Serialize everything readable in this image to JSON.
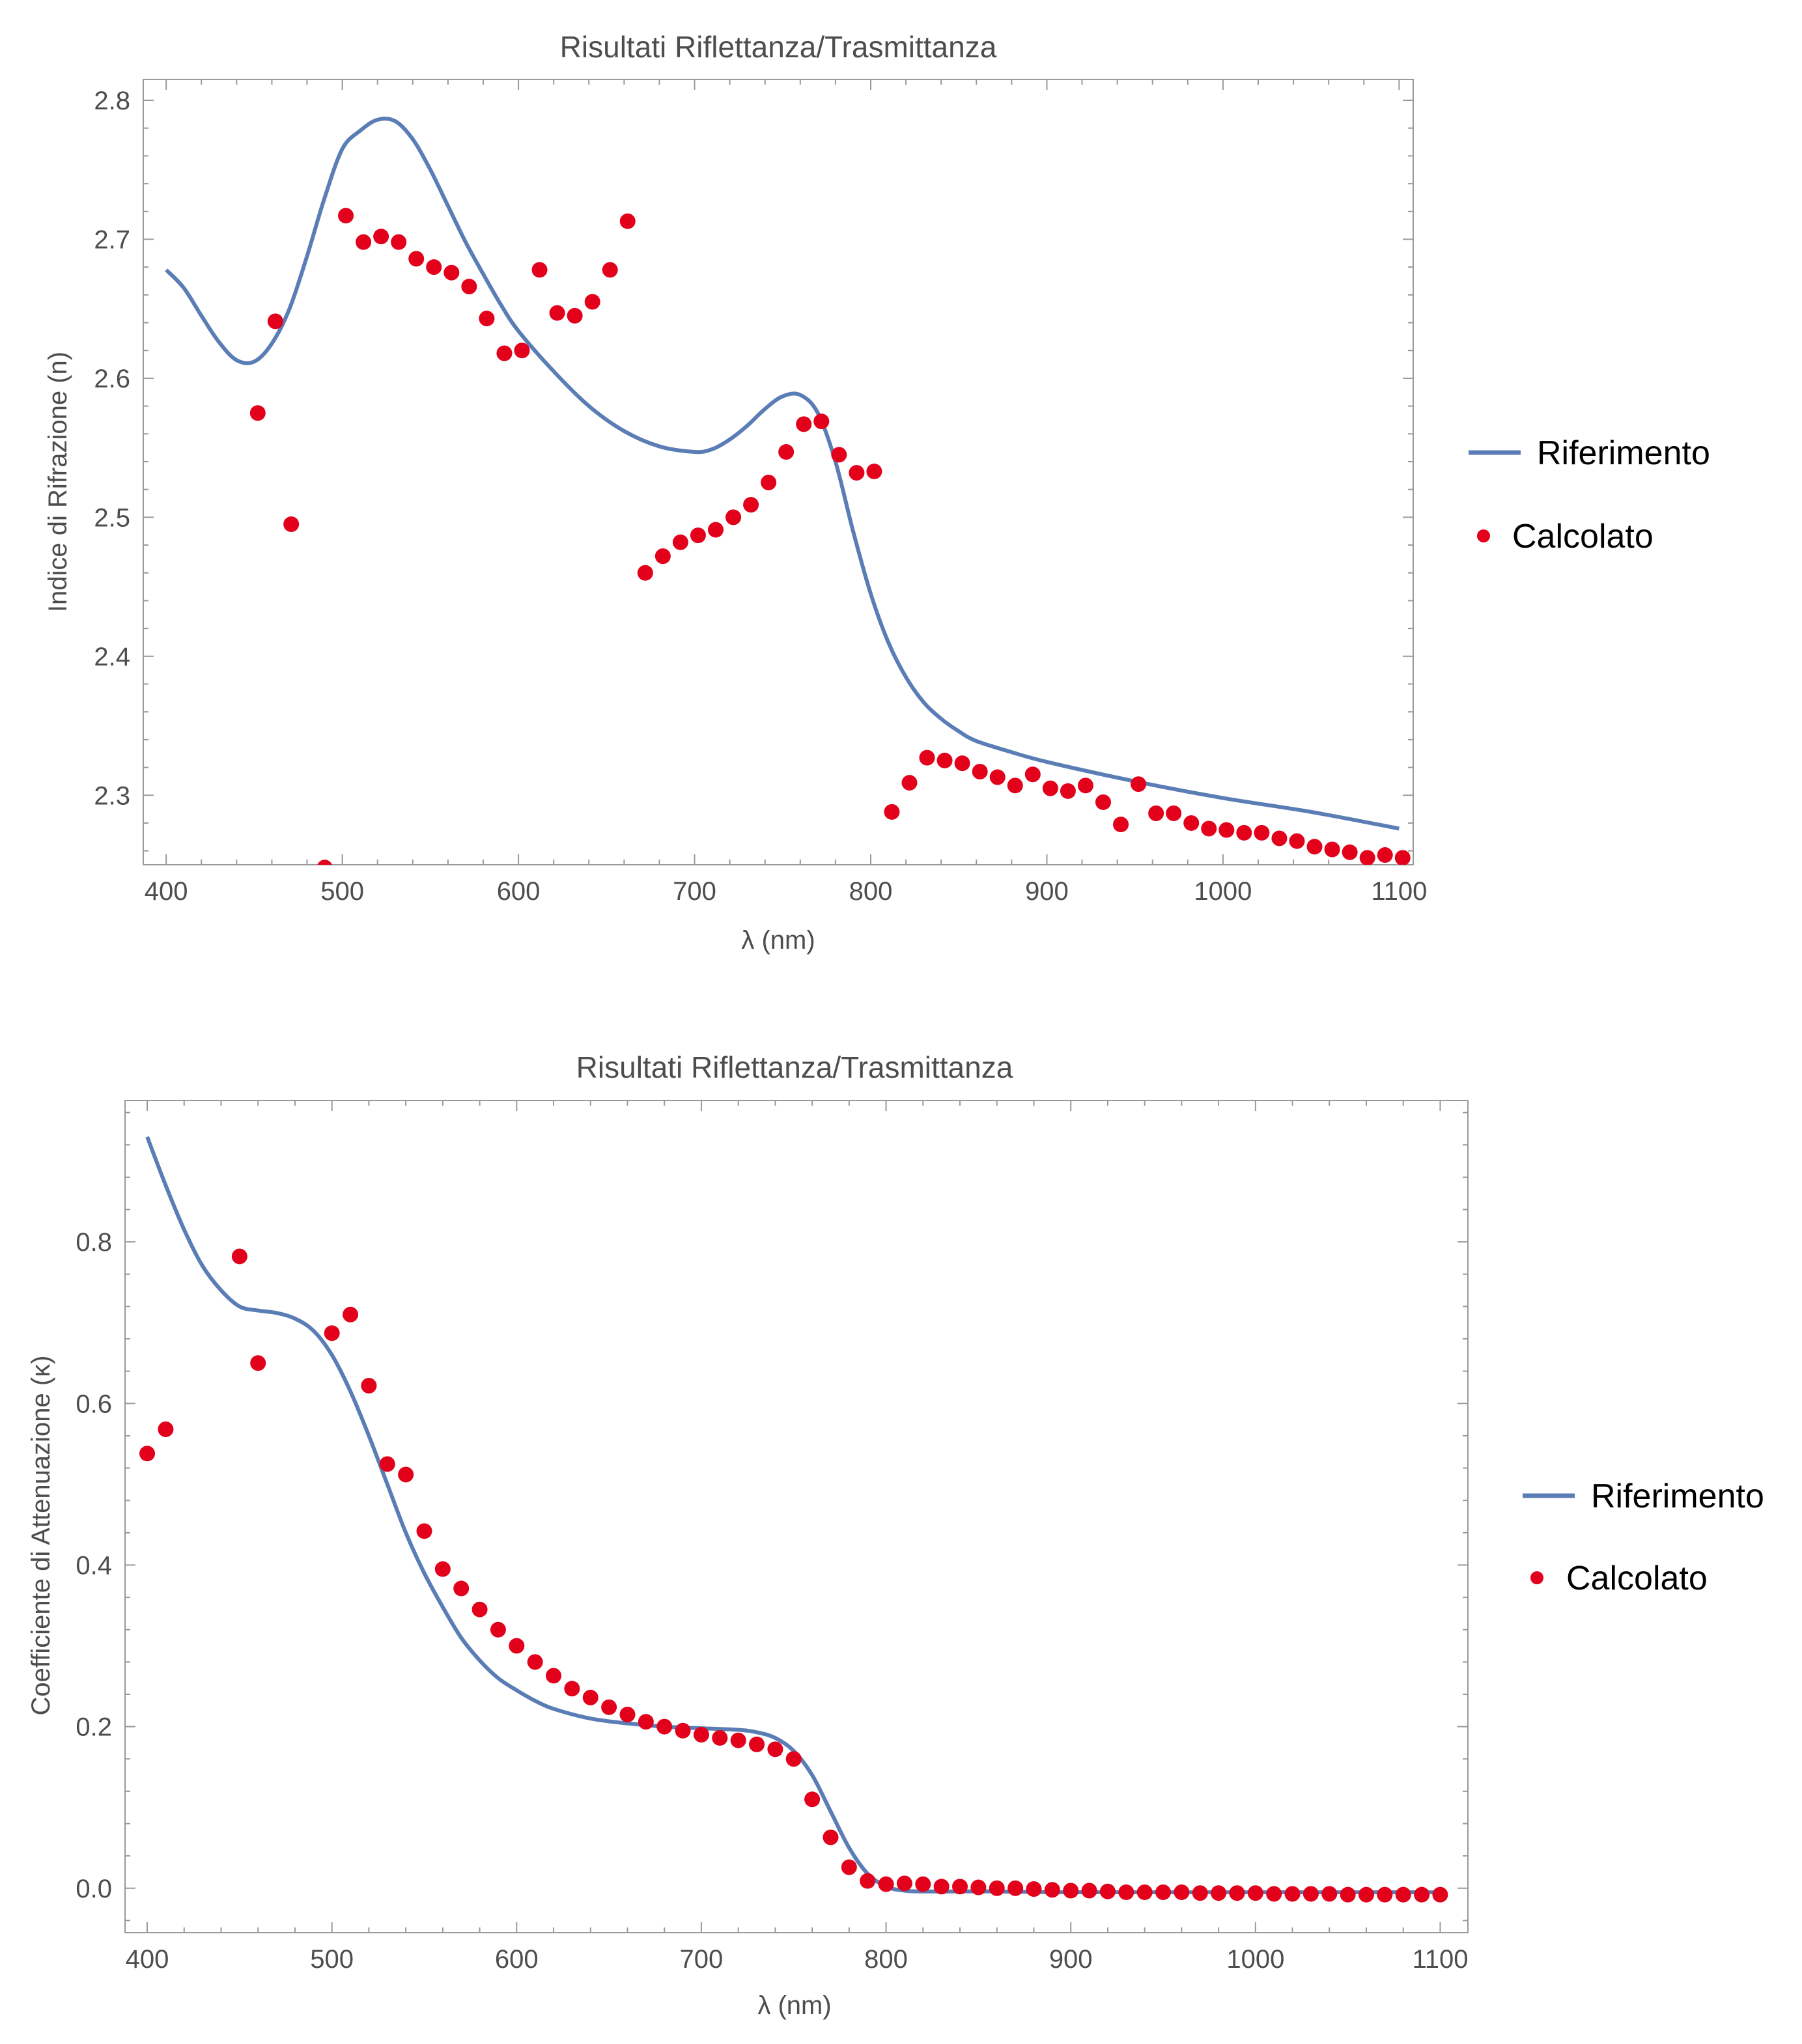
{
  "colors": {
    "reference": "#5b7db5",
    "computed": "#e3001b",
    "frame": "#999999",
    "text": "#4d4d4d"
  },
  "chart_data": [
    {
      "type": "line+scatter",
      "title": "Risultati Riflettanza/Trasmittanza",
      "xlabel": "λ (nm)",
      "ylabel": "Indice di Rifrazione (n)",
      "xlim": [
        387,
        1108
      ],
      "ylim": [
        2.25,
        2.815
      ],
      "xticks": [
        400,
        500,
        600,
        700,
        800,
        900,
        1000,
        1100
      ],
      "yticks": [
        2.3,
        2.4,
        2.5,
        2.6,
        2.7,
        2.8
      ],
      "ytick_labels": [
        "2.3",
        "2.4",
        "2.5",
        "2.6",
        "2.7",
        "2.8"
      ],
      "legend_placement": "right",
      "series": [
        {
          "name": "Riferimento",
          "kind": "line",
          "x": [
            400,
            410,
            420,
            430,
            440,
            450,
            460,
            470,
            480,
            490,
            500,
            510,
            520,
            530,
            540,
            550,
            560,
            570,
            580,
            590,
            600,
            620,
            640,
            660,
            680,
            700,
            710,
            720,
            730,
            740,
            750,
            760,
            770,
            780,
            790,
            800,
            810,
            820,
            830,
            840,
            850,
            860,
            880,
            900,
            950,
            1000,
            1050,
            1100
          ],
          "y": [
            2.678,
            2.665,
            2.645,
            2.626,
            2.613,
            2.612,
            2.625,
            2.65,
            2.688,
            2.73,
            2.765,
            2.778,
            2.786,
            2.785,
            2.772,
            2.75,
            2.724,
            2.698,
            2.675,
            2.653,
            2.634,
            2.605,
            2.58,
            2.562,
            2.551,
            2.547,
            2.549,
            2.556,
            2.566,
            2.578,
            2.587,
            2.588,
            2.575,
            2.54,
            2.49,
            2.445,
            2.41,
            2.385,
            2.367,
            2.355,
            2.346,
            2.339,
            2.331,
            2.324,
            2.31,
            2.298,
            2.288,
            2.276
          ]
        },
        {
          "name": "Calcolato",
          "kind": "scatter",
          "x": [
            452,
            462,
            471,
            490,
            502,
            512,
            522,
            532,
            542,
            552,
            562,
            572,
            582,
            592,
            602,
            612,
            622,
            632,
            642,
            652,
            662,
            672,
            682,
            692,
            702,
            712,
            722,
            732,
            742,
            752,
            762,
            772,
            782,
            792,
            802,
            812,
            822,
            832,
            842,
            852,
            862,
            872,
            882,
            892,
            902,
            912,
            922,
            932,
            942,
            952,
            962,
            972,
            982,
            992,
            1002,
            1012,
            1022,
            1032,
            1042,
            1052,
            1062,
            1072,
            1082,
            1092,
            1102
          ],
          "y": [
            2.575,
            2.641,
            2.495,
            2.248,
            2.717,
            2.698,
            2.702,
            2.698,
            2.686,
            2.68,
            2.676,
            2.666,
            2.643,
            2.618,
            2.62,
            2.678,
            2.647,
            2.645,
            2.655,
            2.678,
            2.713,
            2.46,
            2.472,
            2.482,
            2.487,
            2.491,
            2.5,
            2.509,
            2.525,
            2.547,
            2.567,
            2.569,
            2.545,
            2.532,
            2.533,
            2.288,
            2.309,
            2.327,
            2.325,
            2.323,
            2.317,
            2.313,
            2.307,
            2.315,
            2.305,
            2.303,
            2.307,
            2.295,
            2.279,
            2.308,
            2.287,
            2.287,
            2.28,
            2.276,
            2.275,
            2.273,
            2.273,
            2.269,
            2.267,
            2.263,
            2.261,
            2.259,
            2.255,
            2.257,
            2.255
          ]
        }
      ]
    },
    {
      "type": "line+scatter",
      "title": "Risultati Riflettanza/Trasmittanza",
      "xlabel": "λ (nm)",
      "ylabel": "Coefficiente di Attenuazione (κ)",
      "xlim": [
        388,
        1115
      ],
      "ylim": [
        -0.055,
        0.975
      ],
      "xticks": [
        400,
        500,
        600,
        700,
        800,
        900,
        1000,
        1100
      ],
      "yticks": [
        0.0,
        0.2,
        0.4,
        0.6,
        0.8
      ],
      "ytick_labels": [
        "0.0",
        "0.2",
        "0.4",
        "0.6",
        "0.8"
      ],
      "legend_placement": "right",
      "series": [
        {
          "name": "Riferimento",
          "kind": "line",
          "x": [
            400,
            410,
            420,
            430,
            440,
            450,
            460,
            470,
            480,
            490,
            500,
            510,
            520,
            530,
            540,
            550,
            560,
            570,
            580,
            590,
            600,
            610,
            620,
            640,
            660,
            680,
            700,
            720,
            730,
            740,
            750,
            760,
            770,
            780,
            790,
            800,
            810,
            820,
            840,
            860,
            900,
            1000,
            1100
          ],
          "y": [
            0.93,
            0.87,
            0.815,
            0.77,
            0.74,
            0.72,
            0.715,
            0.712,
            0.705,
            0.69,
            0.66,
            0.615,
            0.56,
            0.5,
            0.44,
            0.39,
            0.348,
            0.31,
            0.282,
            0.26,
            0.245,
            0.232,
            0.222,
            0.21,
            0.204,
            0.2,
            0.198,
            0.196,
            0.193,
            0.186,
            0.17,
            0.14,
            0.095,
            0.05,
            0.018,
            0.002,
            -0.003,
            -0.004,
            -0.004,
            -0.004,
            -0.005,
            -0.005,
            -0.005
          ]
        },
        {
          "name": "Calcolato",
          "kind": "scatter",
          "x": [
            400,
            410,
            450,
            460,
            500,
            510,
            520,
            530,
            540,
            550,
            560,
            570,
            580,
            590,
            600,
            610,
            620,
            630,
            640,
            650,
            660,
            670,
            680,
            690,
            700,
            710,
            720,
            730,
            740,
            750,
            760,
            770,
            780,
            790,
            800,
            810,
            820,
            830,
            840,
            850,
            860,
            870,
            880,
            890,
            900,
            910,
            920,
            930,
            940,
            950,
            960,
            970,
            980,
            990,
            1000,
            1010,
            1020,
            1030,
            1040,
            1050,
            1060,
            1070,
            1080,
            1090,
            1100
          ],
          "y": [
            0.538,
            0.568,
            0.782,
            0.65,
            0.687,
            0.71,
            0.622,
            0.525,
            0.512,
            0.442,
            0.395,
            0.371,
            0.345,
            0.32,
            0.3,
            0.28,
            0.263,
            0.247,
            0.236,
            0.224,
            0.215,
            0.206,
            0.2,
            0.195,
            0.19,
            0.186,
            0.183,
            0.178,
            0.172,
            0.16,
            0.11,
            0.063,
            0.026,
            0.009,
            0.005,
            0.006,
            0.005,
            0.002,
            0.002,
            0.001,
            0.0,
            0.0,
            -0.001,
            -0.002,
            -0.003,
            -0.003,
            -0.004,
            -0.005,
            -0.005,
            -0.005,
            -0.005,
            -0.006,
            -0.006,
            -0.006,
            -0.006,
            -0.007,
            -0.007,
            -0.007,
            -0.007,
            -0.008,
            -0.008,
            -0.008,
            -0.008,
            -0.008,
            -0.008
          ]
        }
      ]
    }
  ]
}
